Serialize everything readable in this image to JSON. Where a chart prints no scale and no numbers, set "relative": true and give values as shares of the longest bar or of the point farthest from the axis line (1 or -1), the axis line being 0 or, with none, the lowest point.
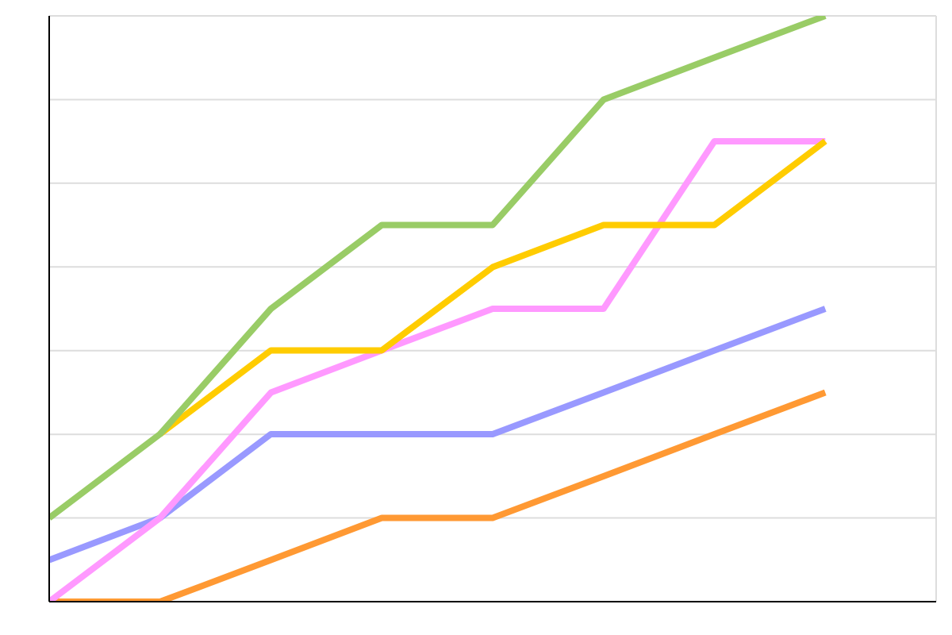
{
  "chart_data": {
    "type": "line",
    "relative": true,
    "grid": true,
    "marker": "none",
    "line_style": "solid",
    "tick_labels": false,
    "categories": [
      null,
      null,
      null,
      null,
      null,
      null,
      null,
      null
    ],
    "series": [
      {
        "color": "#ff9933",
        "values": [
          0,
          0,
          0.071,
          0.143,
          0.143,
          0.214,
          0.286,
          0.357
        ]
      },
      {
        "color": "#9999ff",
        "values": [
          0.071,
          0.143,
          0.286,
          0.286,
          0.286,
          0.357,
          0.429,
          0.5
        ]
      },
      {
        "color": "#ff99ff",
        "values": [
          0,
          0.143,
          0.357,
          0.429,
          0.5,
          0.5,
          0.786,
          0.786
        ]
      },
      {
        "color": "#ffcc00",
        "values": [
          null,
          0.286,
          0.429,
          0.429,
          0.571,
          0.643,
          0.643,
          0.786
        ]
      },
      {
        "color": "#99cc66",
        "values": [
          0.143,
          0.286,
          0.5,
          0.643,
          0.643,
          0.857,
          0.929,
          1
        ]
      }
    ]
  }
}
